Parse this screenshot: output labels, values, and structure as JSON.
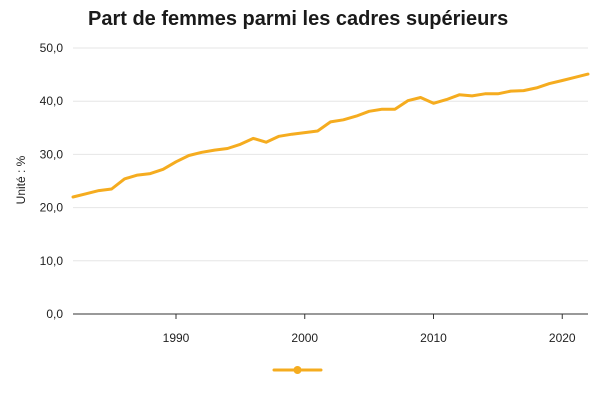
{
  "title": "Part de femmes parmi les cadres supérieurs",
  "ylabel": "Unité : %",
  "colors": {
    "series": "#f5ac1f",
    "grid": "#e6e6e6",
    "axis": "#333333"
  },
  "chart_data": {
    "type": "line",
    "title": "Part de femmes parmi les cadres supérieurs",
    "xlabel": "",
    "ylabel": "Unité : %",
    "xlim": [
      1982,
      2022
    ],
    "ylim": [
      0,
      50
    ],
    "x_ticks": [
      1990,
      2000,
      2010,
      2020
    ],
    "y_ticks": [
      "0,0",
      "10,0",
      "20,0",
      "30,0",
      "40,0",
      "50,0"
    ],
    "y_tick_values": [
      0,
      10,
      20,
      30,
      40,
      50
    ],
    "grid": true,
    "legend": "bottom",
    "series": [
      {
        "color": "#f5ac1f",
        "x": [
          1982,
          1983,
          1984,
          1985,
          1986,
          1987,
          1988,
          1989,
          1990,
          1991,
          1992,
          1993,
          1994,
          1995,
          1996,
          1997,
          1998,
          1999,
          2000,
          2001,
          2002,
          2003,
          2004,
          2005,
          2006,
          2007,
          2008,
          2009,
          2010,
          2011,
          2012,
          2013,
          2014,
          2015,
          2016,
          2017,
          2018,
          2019,
          2020,
          2021,
          2022
        ],
        "values": [
          22.0,
          22.6,
          23.2,
          23.5,
          25.4,
          26.1,
          26.4,
          27.2,
          28.6,
          29.8,
          30.4,
          30.8,
          31.1,
          31.9,
          33.0,
          32.3,
          33.4,
          33.8,
          34.1,
          34.4,
          36.1,
          36.5,
          37.2,
          38.1,
          38.5,
          38.5,
          40.1,
          40.7,
          39.6,
          40.3,
          41.2,
          41.0,
          41.4,
          41.4,
          41.9,
          42.0,
          42.5,
          43.3,
          43.9,
          44.5,
          45.1
        ]
      }
    ]
  }
}
